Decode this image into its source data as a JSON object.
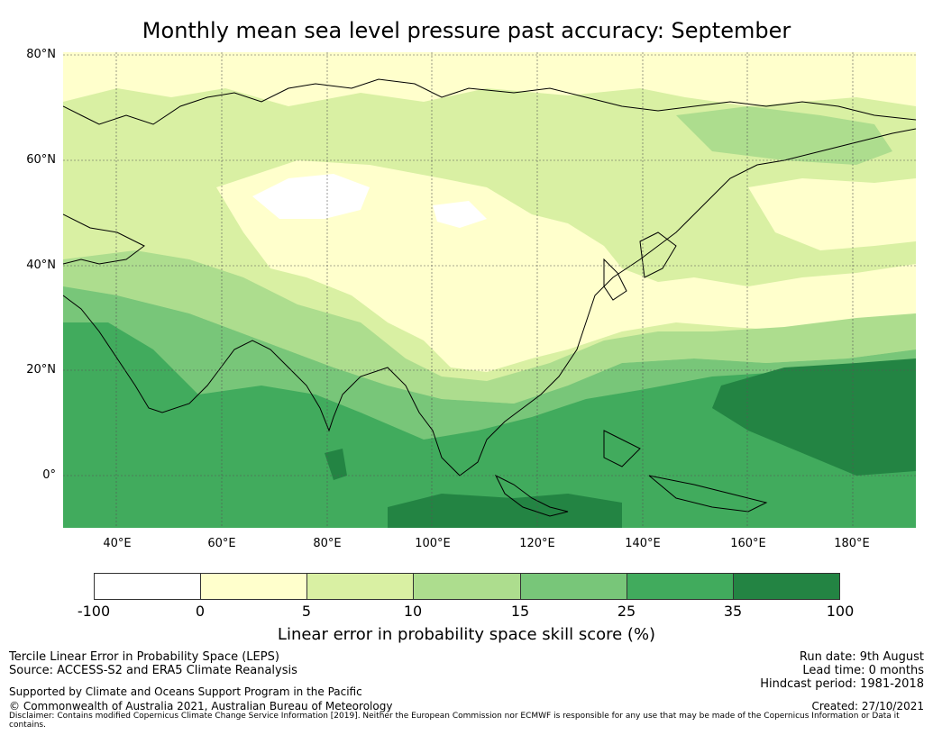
{
  "title": "Monthly mean sea level pressure past accuracy: September",
  "map": {
    "lat_labels": [
      "80°N",
      "60°N",
      "40°N",
      "20°N",
      "0°"
    ],
    "lon_labels": [
      "40°E",
      "60°E",
      "80°E",
      "100°E",
      "120°E",
      "140°E",
      "160°E",
      "180°E"
    ],
    "palette": [
      "#ffffff",
      "#ffffcc",
      "#d9f0a3",
      "#addd8e",
      "#78c679",
      "#41ab5d",
      "#238443"
    ],
    "extent": {
      "lon": [
        30,
        192
      ],
      "lat": [
        -10,
        80
      ]
    }
  },
  "colorbar": {
    "ticks": [
      "-100",
      "0",
      "5",
      "10",
      "15",
      "25",
      "35",
      "100"
    ],
    "label": "Linear error in probability space skill score (%)"
  },
  "footer": {
    "left_line1": "Tercile Linear Error in Probability Space (LEPS)",
    "left_line2": "Source: ACCESS-S2 and ERA5 Climate Reanalysis",
    "left_line3": "Supported by Climate and Oceans Support Program in the Pacific",
    "left_line4": "© Commonwealth of Australia 2021, Australian Bureau of Meteorology",
    "right_line1": "Run date: 9th August",
    "right_line2": "Lead time: 0 months",
    "right_line3": "Hindcast period: 1981-2018",
    "right_line4": "Created: 27/10/2021",
    "disclaimer": "Disclaimer: Contains modified Copernicus Climate Change Service Information [2019]. Neither the European Commission nor ECMWF is responsible for any use that may be made of the Copernicus Information or Data it contains."
  }
}
